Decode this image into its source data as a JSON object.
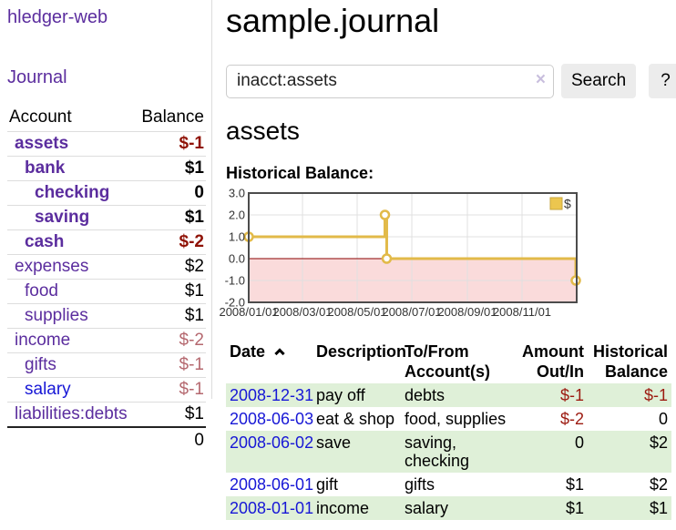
{
  "colors": {
    "purple_link": "#5b2d9e",
    "blue_link": "#1717d6",
    "negative_bold": "#8f1206",
    "negative": "#9c1a10",
    "negative_muted": "#b5686f",
    "row_stripe_green": "#dff0d8",
    "button_bg": "#ececec"
  },
  "sidebar": {
    "brand": "hledger-web",
    "nav_journal": "Journal",
    "accounts": {
      "headers": [
        "Account",
        "Balance"
      ],
      "rows": [
        {
          "name": "assets",
          "balance": "$-1",
          "indent": 1,
          "bold": true,
          "balance_style": "negative_bold"
        },
        {
          "name": "bank",
          "balance": "$1",
          "indent": 2,
          "bold": true,
          "balance_style": "normal"
        },
        {
          "name": "checking",
          "balance": "0",
          "indent": 3,
          "bold": true,
          "balance_style": "normal"
        },
        {
          "name": "saving",
          "balance": "$1",
          "indent": 3,
          "bold": true,
          "balance_style": "normal"
        },
        {
          "name": "cash",
          "balance": "$-2",
          "indent": 2,
          "bold": true,
          "balance_style": "negative_bold"
        },
        {
          "name": "expenses",
          "balance": "$2",
          "indent": 1,
          "bold": false,
          "balance_style": "normal"
        },
        {
          "name": "food",
          "balance": "$1",
          "indent": 2,
          "bold": false,
          "balance_style": "normal"
        },
        {
          "name": "supplies",
          "balance": "$1",
          "indent": 2,
          "bold": false,
          "balance_style": "normal"
        },
        {
          "name": "income",
          "balance": "$-2",
          "indent": 1,
          "bold": false,
          "balance_style": "negative_muted"
        },
        {
          "name": "gifts",
          "balance": "$-1",
          "indent": 2,
          "bold": false,
          "balance_style": "negative_muted"
        },
        {
          "name": "salary",
          "balance": "$-1",
          "indent": 2,
          "bold": false,
          "balance_style": "negative_muted",
          "link_color": "blue"
        },
        {
          "name": "liabilities:debts",
          "balance": "$1",
          "indent": 1,
          "bold": false,
          "balance_style": "normal"
        }
      ],
      "total": "0"
    }
  },
  "header": {
    "title": "sample.journal"
  },
  "search": {
    "value": "inacct:assets",
    "clear_icon": "×",
    "button_label": "Search",
    "help_label": "?"
  },
  "account_page": {
    "heading": "assets"
  },
  "chart_data": {
    "type": "line",
    "step": true,
    "title": "Historical Balance:",
    "legend": [
      {
        "label": "$",
        "color": "#ecc64f"
      }
    ],
    "legend_position": "top-right",
    "grid": true,
    "x_domain": [
      "2008-01-01",
      "2009-01-01"
    ],
    "x_ticks": [
      {
        "date": "2008-01-01",
        "label": "2008/01/01"
      },
      {
        "date": "2008-03-01",
        "label": "2008/03/01"
      },
      {
        "date": "2008-05-01",
        "label": "2008/05/01"
      },
      {
        "date": "2008-07-01",
        "label": "2008/07/01"
      },
      {
        "date": "2008-09-01",
        "label": "2008/09/01"
      },
      {
        "date": "2008-11-01",
        "label": "2008/11/01"
      }
    ],
    "ylim": [
      -2,
      3
    ],
    "y_ticks": [
      3.0,
      2.0,
      1.0,
      0.0,
      -1.0,
      -2.0
    ],
    "series": [
      {
        "name": "$",
        "points": [
          {
            "date": "2008-01-01",
            "value": 1
          },
          {
            "date": "2008-06-01",
            "value": 2
          },
          {
            "date": "2008-06-03",
            "value": 0
          },
          {
            "date": "2008-12-31",
            "value": -1
          }
        ]
      }
    ],
    "colors": {
      "line": "#e2ba49",
      "marker_fill": "#ffffff",
      "negative_region": "#fadbdb",
      "zero_line": "#8b0000",
      "grid": "#e0e0e0",
      "border": "#4c4c4c",
      "tick_text": "#333333",
      "legend_border": "#c7a63d"
    }
  },
  "transactions": {
    "headers": [
      {
        "lines": [
          "Date"
        ],
        "align": "left",
        "sort": "asc"
      },
      {
        "lines": [
          "Description"
        ],
        "align": "left"
      },
      {
        "lines": [
          "To/From",
          "Account(s)"
        ],
        "align": "left"
      },
      {
        "lines": [
          "Amount",
          "Out/In"
        ],
        "align": "right"
      },
      {
        "lines": [
          "Historical",
          "Balance"
        ],
        "align": "right"
      }
    ],
    "rows": [
      {
        "date": "2008-12-31",
        "description": "pay off",
        "accounts": "debts",
        "amount": "$-1",
        "amount_negative": true,
        "balance": "$-1",
        "balance_negative": true
      },
      {
        "date": "2008-06-03",
        "description": "eat & shop",
        "accounts": "food, supplies",
        "amount": "$-2",
        "amount_negative": true,
        "balance": "0",
        "balance_negative": false
      },
      {
        "date": "2008-06-02",
        "description": "save",
        "accounts": "saving, checking",
        "amount": "0",
        "amount_negative": false,
        "balance": "$2",
        "balance_negative": false
      },
      {
        "date": "2008-06-01",
        "description": "gift",
        "accounts": "gifts",
        "amount": "$1",
        "amount_negative": false,
        "balance": "$2",
        "balance_negative": false
      },
      {
        "date": "2008-01-01",
        "description": "income",
        "accounts": "salary",
        "amount": "$1",
        "amount_negative": false,
        "balance": "$1",
        "balance_negative": false
      }
    ]
  }
}
